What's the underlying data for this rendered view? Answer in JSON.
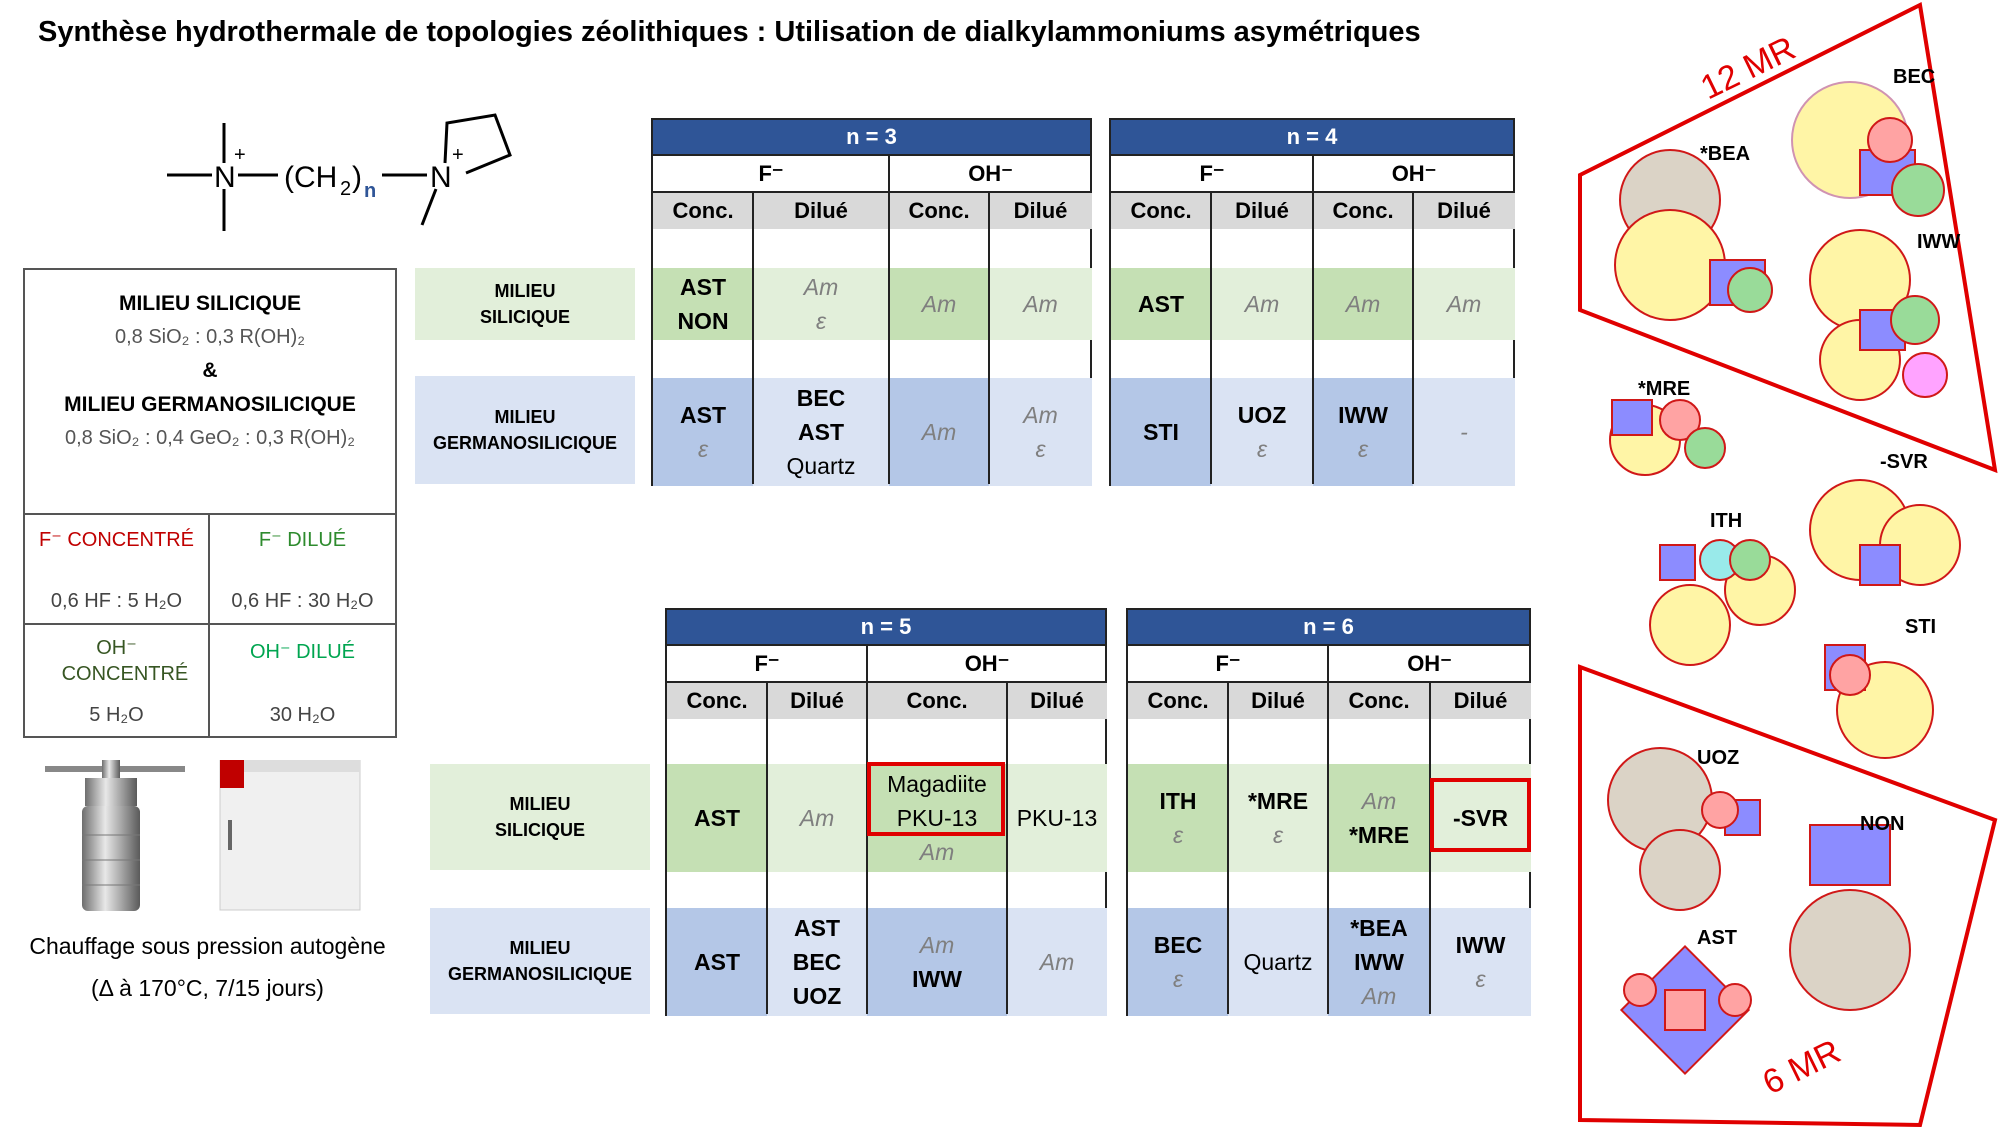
{
  "title": "Synthèse hydrothermale de topologies zéolithiques : Utilisation de dialkylammoniums asymétriques",
  "molecule": {
    "sub": "n",
    "charge": "+"
  },
  "conditions": {
    "silicic_label": "MILIEU SILICIQUE",
    "silicic_ratio": "0,8 SiO₂ :  0,3 R(OH)₂",
    "amp": "&",
    "germano_label": "MILIEU GERMANOSILICIQUE",
    "germano_ratio": "0,8 SiO₂ :  0,4 GeO₂ : 0,3 R(OH)₂",
    "f_conc_label": "F⁻ CONCENTRÉ",
    "f_conc_val": "0,6 HF : 5 H₂O",
    "f_dil_label": "F⁻ DILUÉ",
    "f_dil_val": "0,6 HF : 30 H₂O",
    "oh_conc_label": "OH⁻ CONCENTRÉ",
    "oh_conc_val": "5 H₂O",
    "oh_dil_label": "OH⁻ DILUÉ",
    "oh_dil_val": "30 H₂O"
  },
  "caption": {
    "line1": "Chauffage sous pression autogène",
    "line2": "(Δ à 170°C, 7/15 jours)"
  },
  "row_labels": {
    "si1": "MILIEU",
    "si2": "SILICIQUE",
    "ge1": "MILIEU",
    "ge2": "GERMANOSILICIQUE"
  },
  "headers": {
    "f": "F⁻",
    "oh": "OH⁻",
    "conc": "Conc.",
    "dil": "Dilué"
  },
  "tables": {
    "n3": {
      "title": "n = 3",
      "si": [
        [
          "AST",
          "NON"
        ],
        [
          "Am",
          "ε"
        ],
        [
          "Am"
        ],
        [
          "Am"
        ]
      ],
      "ge": [
        [
          "AST",
          "ε"
        ],
        [
          "BEC",
          "AST",
          "Quartz"
        ],
        [
          "Am"
        ],
        [
          "Am",
          "ε"
        ]
      ]
    },
    "n4": {
      "title": "n = 4",
      "si": [
        [
          "AST"
        ],
        [
          "Am"
        ],
        [
          "Am"
        ],
        [
          "Am"
        ]
      ],
      "ge": [
        [
          "STI"
        ],
        [
          "UOZ",
          "ε"
        ],
        [
          "IWW",
          "ε"
        ],
        [
          "-"
        ]
      ]
    },
    "n5": {
      "title": "n = 5",
      "si": [
        [
          "AST"
        ],
        [
          "Am"
        ],
        [
          "Magadiite",
          "PKU-13",
          "Am"
        ],
        [
          "PKU-13"
        ]
      ],
      "ge": [
        [
          "AST"
        ],
        [
          "AST",
          "BEC",
          "UOZ"
        ],
        [
          "Am",
          "IWW"
        ],
        [
          "Am"
        ]
      ]
    },
    "n6": {
      "title": "n = 6",
      "si": [
        [
          "ITH",
          "ε"
        ],
        [
          "*MRE",
          "ε"
        ],
        [
          "Am",
          "*MRE"
        ],
        [
          "-SVR"
        ]
      ],
      "ge": [
        [
          "BEC",
          "ε"
        ],
        [
          "Quartz"
        ],
        [
          "*BEA",
          "IWW",
          "Am"
        ],
        [
          "IWW",
          "ε"
        ]
      ]
    }
  },
  "zeolites": {
    "mr12": "12 MR",
    "mr6": "6 MR",
    "bec": "BEC",
    "bea": "*BEA",
    "iww": "IWW",
    "mre": "*MRE",
    "svr": "-SVR",
    "ith": "ITH",
    "sti": "STI",
    "uoz": "UOZ",
    "non": "NON",
    "ast": "AST"
  }
}
